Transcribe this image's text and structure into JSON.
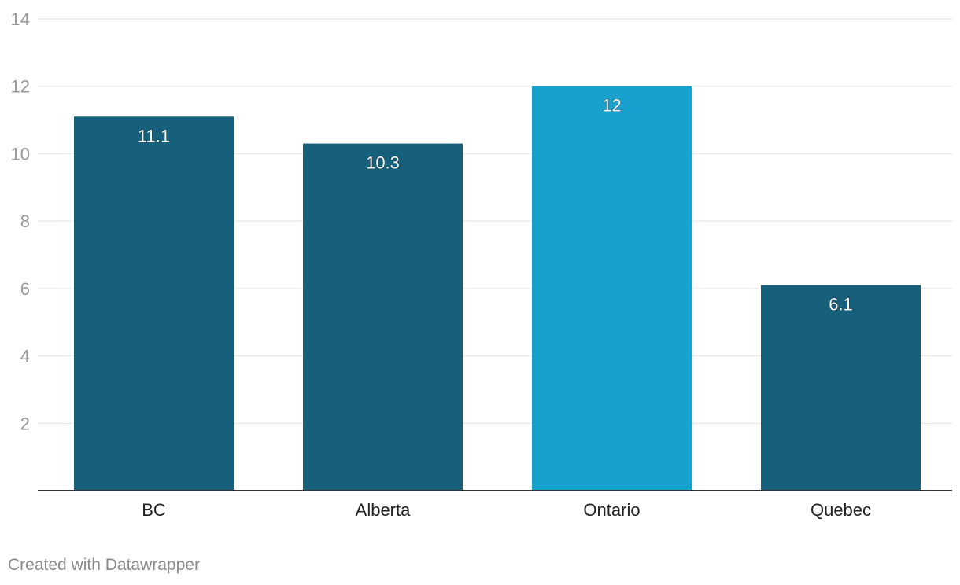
{
  "chart_data": {
    "type": "bar",
    "title": "",
    "xlabel": "",
    "ylabel": "",
    "categories": [
      "BC",
      "Alberta",
      "Ontario",
      "Quebec"
    ],
    "values": [
      11.1,
      10.3,
      12,
      6.1
    ],
    "value_labels": [
      "11.1",
      "10.3",
      "12",
      "6.1"
    ],
    "ylim": [
      0,
      14
    ],
    "yticks": [
      2,
      4,
      6,
      8,
      10,
      12,
      14
    ],
    "ytick_labels": [
      "2",
      "4",
      "6",
      "8",
      "10",
      "12",
      "14"
    ],
    "grid": true,
    "colors": {
      "default_bar": "#17607b",
      "highlight_bar": "#18a1cd",
      "gridline": "#e2e2e2",
      "baseline": "#333333"
    },
    "highlight_category": "Ontario"
  },
  "footer": {
    "credit": "Created with Datawrapper"
  }
}
